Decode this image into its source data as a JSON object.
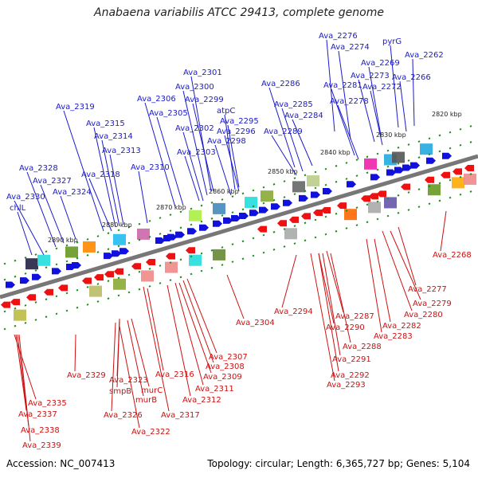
{
  "title": "Anabaena variabilis ATCC 29413, complete genome",
  "footer": {
    "accession": "Accession: NC_007413",
    "summary": "Topology: circular; Length: 6,365,727 bp; Genes: 5,104"
  },
  "colors": {
    "forward": "#1a1acc",
    "reverse": "#cc1111",
    "backbone": "#777777",
    "ticks": "#1e8c1e"
  },
  "kbp_ticks": [
    "2820 kbp",
    "2830 kbp",
    "2840 kbp",
    "2850 kbp",
    "2860 kbp",
    "2870 kbp",
    "2880 kbp",
    "2890 kbp"
  ],
  "forward_labels": [
    "Ava_2276",
    "Ava_2274",
    "pyrG",
    "Ava_2262",
    "Ava_2269",
    "Ava_2273",
    "Ava_2266",
    "Ava_2286",
    "Ava_2281",
    "Ava_2272",
    "Ava_2278",
    "Ava_2285",
    "Ava_2284",
    "Ava_2289",
    "Ava_2301",
    "Ava_2300",
    "Ava_2306",
    "Ava_2299",
    "Ava_2305",
    "atpC",
    "Ava_2295",
    "Ava_2302",
    "Ava_2296",
    "Ava_2298",
    "Ava_2303",
    "Ava_2319",
    "Ava_2315",
    "Ava_2314",
    "Ava_2313",
    "Ava_2310",
    "Ava_2318",
    "Ava_2328",
    "Ava_2327",
    "Ava_2324",
    "Ava_2330",
    "chlL"
  ],
  "reverse_labels": [
    "Ava_2268",
    "Ava_2277",
    "Ava_2279",
    "Ava_2280",
    "Ava_2282",
    "Ava_2283",
    "Ava_2294",
    "Ava_2287",
    "Ava_2290",
    "Ava_2288",
    "Ava_2291",
    "Ava_2292",
    "Ava_2293",
    "Ava_2304",
    "Ava_2307",
    "Ava_2308",
    "Ava_2309",
    "Ava_2311",
    "Ava_2312",
    "Ava_2316",
    "Ava_2317",
    "Ava_2329",
    "Ava_2323",
    "smpB",
    "murC",
    "murB",
    "Ava_2326",
    "Ava_2322",
    "Ava_2335",
    "Ava_2337",
    "Ava_2338",
    "Ava_2339"
  ]
}
